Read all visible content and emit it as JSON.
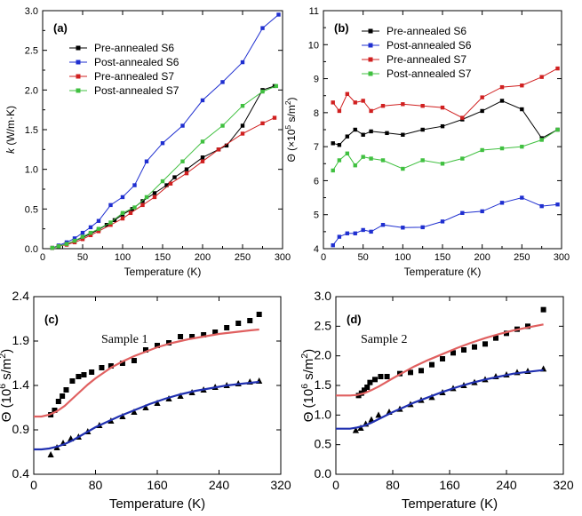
{
  "chart_data": [
    {
      "type": "line",
      "panel": "(a)",
      "xlabel": "Temperature (K)",
      "ylabel": "k (W/m·K)",
      "ylabel_italic": "k",
      "ylabel_rest": " (W/m·K)",
      "xlim": [
        0,
        300
      ],
      "ylim": [
        0,
        3.0
      ],
      "xticks": [
        0,
        50,
        100,
        150,
        200,
        250,
        300
      ],
      "yticks": [
        0.0,
        0.5,
        1.0,
        1.5,
        2.0,
        2.5,
        3.0
      ],
      "ytick_labels": [
        "0.0",
        "0.5",
        "1.0",
        "1.5",
        "2.0",
        "2.5",
        "3.0"
      ],
      "legend_position": "top-left",
      "series": [
        {
          "name": "Pre-annealed S6",
          "color": "#000000",
          "x": [
            12,
            20,
            30,
            40,
            50,
            60,
            70,
            80,
            90,
            100,
            112,
            125,
            140,
            155,
            165,
            180,
            200,
            220,
            230,
            250,
            275,
            290
          ],
          "y": [
            0.01,
            0.03,
            0.06,
            0.1,
            0.14,
            0.19,
            0.24,
            0.3,
            0.36,
            0.43,
            0.5,
            0.6,
            0.7,
            0.8,
            0.9,
            1.0,
            1.15,
            1.25,
            1.3,
            1.55,
            2.0,
            2.05
          ]
        },
        {
          "name": "Post-annealed S6",
          "color": "#1f2fd0",
          "x": [
            12,
            20,
            30,
            40,
            50,
            60,
            70,
            85,
            100,
            115,
            130,
            150,
            175,
            200,
            225,
            250,
            275,
            295
          ],
          "y": [
            0.01,
            0.04,
            0.08,
            0.13,
            0.2,
            0.27,
            0.35,
            0.55,
            0.65,
            0.8,
            1.1,
            1.33,
            1.55,
            1.87,
            2.1,
            2.35,
            2.78,
            2.95
          ]
        },
        {
          "name": "Pre-annealed S7",
          "color": "#d02020",
          "x": [
            12,
            20,
            30,
            40,
            50,
            60,
            70,
            85,
            100,
            110,
            125,
            140,
            160,
            180,
            200,
            220,
            250,
            275,
            290
          ],
          "y": [
            0.01,
            0.03,
            0.05,
            0.08,
            0.12,
            0.17,
            0.22,
            0.3,
            0.38,
            0.45,
            0.55,
            0.65,
            0.82,
            0.95,
            1.1,
            1.25,
            1.45,
            1.58,
            1.65
          ]
        },
        {
          "name": "Post-annealed S7",
          "color": "#40c040",
          "x": [
            12,
            20,
            30,
            40,
            50,
            60,
            70,
            85,
            100,
            115,
            130,
            150,
            175,
            200,
            225,
            250,
            275,
            292
          ],
          "y": [
            0.01,
            0.03,
            0.06,
            0.1,
            0.15,
            0.2,
            0.25,
            0.33,
            0.45,
            0.52,
            0.65,
            0.85,
            1.1,
            1.35,
            1.55,
            1.8,
            1.98,
            2.05
          ]
        }
      ]
    },
    {
      "type": "line",
      "panel": "(b)",
      "xlabel": "Temperature (K)",
      "ylabel": "Θ (×10^5 s/m^2)",
      "ylabel_text": "Θ (×10",
      "ylabel_exp": "5",
      "ylabel_unit": " s/m",
      "ylabel_exp2": "2",
      "ylabel_close": ")",
      "xlim": [
        0,
        300
      ],
      "ylim": [
        4,
        11
      ],
      "xticks": [
        0,
        50,
        100,
        150,
        200,
        250,
        300
      ],
      "yticks": [
        4,
        5,
        6,
        7,
        8,
        9,
        10,
        11
      ],
      "legend_position": "top-left",
      "series": [
        {
          "name": "Pre-annealed S6",
          "color": "#000000",
          "x": [
            12,
            20,
            30,
            40,
            50,
            60,
            80,
            100,
            125,
            150,
            175,
            200,
            225,
            250,
            275,
            295
          ],
          "y": [
            7.1,
            7.05,
            7.3,
            7.5,
            7.35,
            7.45,
            7.4,
            7.35,
            7.5,
            7.6,
            7.8,
            8.05,
            8.35,
            8.1,
            7.25,
            7.5
          ]
        },
        {
          "name": "Post-annealed S6",
          "color": "#1f2fd0",
          "x": [
            12,
            20,
            30,
            40,
            50,
            60,
            75,
            100,
            125,
            150,
            175,
            200,
            225,
            250,
            275,
            295
          ],
          "y": [
            4.1,
            4.35,
            4.45,
            4.45,
            4.55,
            4.5,
            4.7,
            4.62,
            4.63,
            4.8,
            5.05,
            5.1,
            5.35,
            5.5,
            5.25,
            5.3
          ]
        },
        {
          "name": "Pre-annealed S7",
          "color": "#d02020",
          "x": [
            12,
            20,
            30,
            40,
            50,
            60,
            75,
            100,
            125,
            150,
            175,
            200,
            225,
            250,
            275,
            295
          ],
          "y": [
            8.3,
            8.05,
            8.55,
            8.3,
            8.35,
            8.05,
            8.2,
            8.25,
            8.2,
            8.15,
            7.85,
            8.45,
            8.75,
            8.8,
            9.05,
            9.3
          ]
        },
        {
          "name": "Post-annealed S7",
          "color": "#40c040",
          "x": [
            12,
            20,
            30,
            40,
            50,
            60,
            75,
            100,
            125,
            150,
            175,
            200,
            225,
            250,
            275,
            295
          ],
          "y": [
            6.3,
            6.6,
            6.8,
            6.45,
            6.7,
            6.65,
            6.6,
            6.35,
            6.6,
            6.5,
            6.65,
            6.9,
            6.95,
            7.0,
            7.2,
            7.5
          ]
        }
      ]
    },
    {
      "type": "scatter",
      "panel": "(c)",
      "annotation": "Sample 1",
      "xlabel": "Temperature (K)",
      "ylabel": "Θ (10^6 s/m^2)",
      "ylabel_text": "Θ (10",
      "ylabel_exp": "6",
      "ylabel_unit": " s/m",
      "ylabel_exp2": "2",
      "ylabel_close": ")",
      "xlim": [
        0,
        320
      ],
      "ylim": [
        0.4,
        2.4
      ],
      "xticks": [
        0,
        80,
        160,
        240,
        320
      ],
      "yticks": [
        0.4,
        0.9,
        1.4,
        1.9,
        2.4
      ],
      "series": [
        {
          "name": "squares",
          "marker": "square",
          "color": "#000000",
          "x": [
            22,
            27,
            32,
            37,
            42,
            50,
            58,
            65,
            75,
            88,
            100,
            115,
            130,
            145,
            160,
            175,
            190,
            205,
            220,
            235,
            250,
            265,
            280,
            292
          ],
          "y": [
            1.07,
            1.12,
            1.22,
            1.28,
            1.35,
            1.45,
            1.5,
            1.52,
            1.55,
            1.6,
            1.62,
            1.65,
            1.68,
            1.8,
            1.85,
            1.88,
            1.95,
            1.95,
            1.97,
            2.0,
            2.05,
            2.1,
            2.13,
            2.2
          ]
        },
        {
          "name": "triangles",
          "marker": "triangle",
          "color": "#000000",
          "x": [
            22,
            30,
            38,
            48,
            58,
            70,
            85,
            100,
            115,
            130,
            145,
            160,
            175,
            190,
            205,
            220,
            235,
            250,
            265,
            280,
            292
          ],
          "y": [
            0.62,
            0.7,
            0.75,
            0.8,
            0.82,
            0.88,
            0.95,
            1.0,
            1.05,
            1.1,
            1.15,
            1.2,
            1.25,
            1.28,
            1.32,
            1.35,
            1.38,
            1.4,
            1.42,
            1.44,
            1.45
          ]
        },
        {
          "name": "fit-upper",
          "line": true,
          "color": "#e06060",
          "x": [
            0,
            10,
            20,
            30,
            40,
            50,
            60,
            70,
            80,
            90,
            100,
            115,
            130,
            145,
            160,
            180,
            200,
            220,
            240,
            260,
            280,
            292
          ],
          "y": [
            1.05,
            1.05,
            1.07,
            1.11,
            1.17,
            1.25,
            1.33,
            1.41,
            1.48,
            1.54,
            1.6,
            1.67,
            1.73,
            1.78,
            1.83,
            1.88,
            1.92,
            1.95,
            1.98,
            2.0,
            2.02,
            2.03
          ]
        },
        {
          "name": "fit-lower",
          "line": true,
          "color": "#2030b0",
          "x": [
            0,
            10,
            20,
            30,
            40,
            50,
            60,
            70,
            80,
            95,
            110,
            130,
            150,
            170,
            190,
            210,
            230,
            250,
            270,
            292
          ],
          "y": [
            0.68,
            0.68,
            0.69,
            0.71,
            0.74,
            0.78,
            0.83,
            0.88,
            0.93,
            0.99,
            1.05,
            1.12,
            1.19,
            1.25,
            1.3,
            1.34,
            1.37,
            1.4,
            1.42,
            1.44
          ]
        }
      ]
    },
    {
      "type": "scatter",
      "panel": "(d)",
      "annotation": "Sample 2",
      "xlabel": "Temperature (K)",
      "ylabel": "Θ (10^6 s/m^2)",
      "ylabel_text": "Θ (10",
      "ylabel_exp": "6",
      "ylabel_unit": " s/m",
      "ylabel_exp2": "2",
      "ylabel_close": ")",
      "xlim": [
        0,
        320
      ],
      "ylim": [
        0.0,
        3.0
      ],
      "xticks": [
        0,
        80,
        160,
        240,
        320
      ],
      "yticks": [
        0.0,
        0.5,
        1.0,
        1.5,
        2.0,
        2.5,
        3.0
      ],
      "ytick_labels": [
        "0.0",
        "0.5",
        "1.0",
        "1.5",
        "2.0",
        "2.5",
        "3.0"
      ],
      "series": [
        {
          "name": "squares",
          "marker": "square",
          "color": "#000000",
          "x": [
            32,
            36,
            40,
            44,
            48,
            55,
            63,
            72,
            90,
            105,
            120,
            135,
            150,
            165,
            180,
            195,
            210,
            225,
            240,
            255,
            270,
            292
          ],
          "y": [
            1.33,
            1.37,
            1.42,
            1.47,
            1.55,
            1.6,
            1.65,
            1.65,
            1.7,
            1.72,
            1.75,
            1.85,
            1.95,
            2.05,
            2.1,
            2.15,
            2.2,
            2.3,
            2.38,
            2.45,
            2.5,
            2.78
          ]
        },
        {
          "name": "triangles",
          "marker": "triangle",
          "color": "#000000",
          "x": [
            28,
            35,
            42,
            50,
            60,
            75,
            90,
            105,
            120,
            135,
            150,
            165,
            180,
            195,
            210,
            225,
            240,
            255,
            270,
            292
          ],
          "y": [
            0.74,
            0.78,
            0.85,
            0.92,
            1.0,
            1.05,
            1.1,
            1.18,
            1.25,
            1.3,
            1.38,
            1.45,
            1.5,
            1.55,
            1.6,
            1.65,
            1.68,
            1.72,
            1.74,
            1.78
          ]
        },
        {
          "name": "fit-upper",
          "line": true,
          "color": "#e06060",
          "x": [
            0,
            20,
            30,
            40,
            50,
            60,
            70,
            80,
            95,
            110,
            130,
            150,
            170,
            190,
            210,
            230,
            250,
            270,
            292
          ],
          "y": [
            1.33,
            1.33,
            1.34,
            1.37,
            1.42,
            1.48,
            1.55,
            1.62,
            1.72,
            1.82,
            1.93,
            2.03,
            2.13,
            2.22,
            2.3,
            2.37,
            2.43,
            2.48,
            2.53
          ]
        },
        {
          "name": "fit-lower",
          "line": true,
          "color": "#2030b0",
          "x": [
            0,
            20,
            30,
            40,
            50,
            60,
            70,
            80,
            95,
            110,
            130,
            150,
            170,
            190,
            210,
            230,
            250,
            270,
            292
          ],
          "y": [
            0.77,
            0.77,
            0.79,
            0.82,
            0.87,
            0.93,
            0.99,
            1.05,
            1.13,
            1.21,
            1.3,
            1.39,
            1.47,
            1.54,
            1.6,
            1.65,
            1.7,
            1.73,
            1.76
          ]
        }
      ]
    }
  ]
}
